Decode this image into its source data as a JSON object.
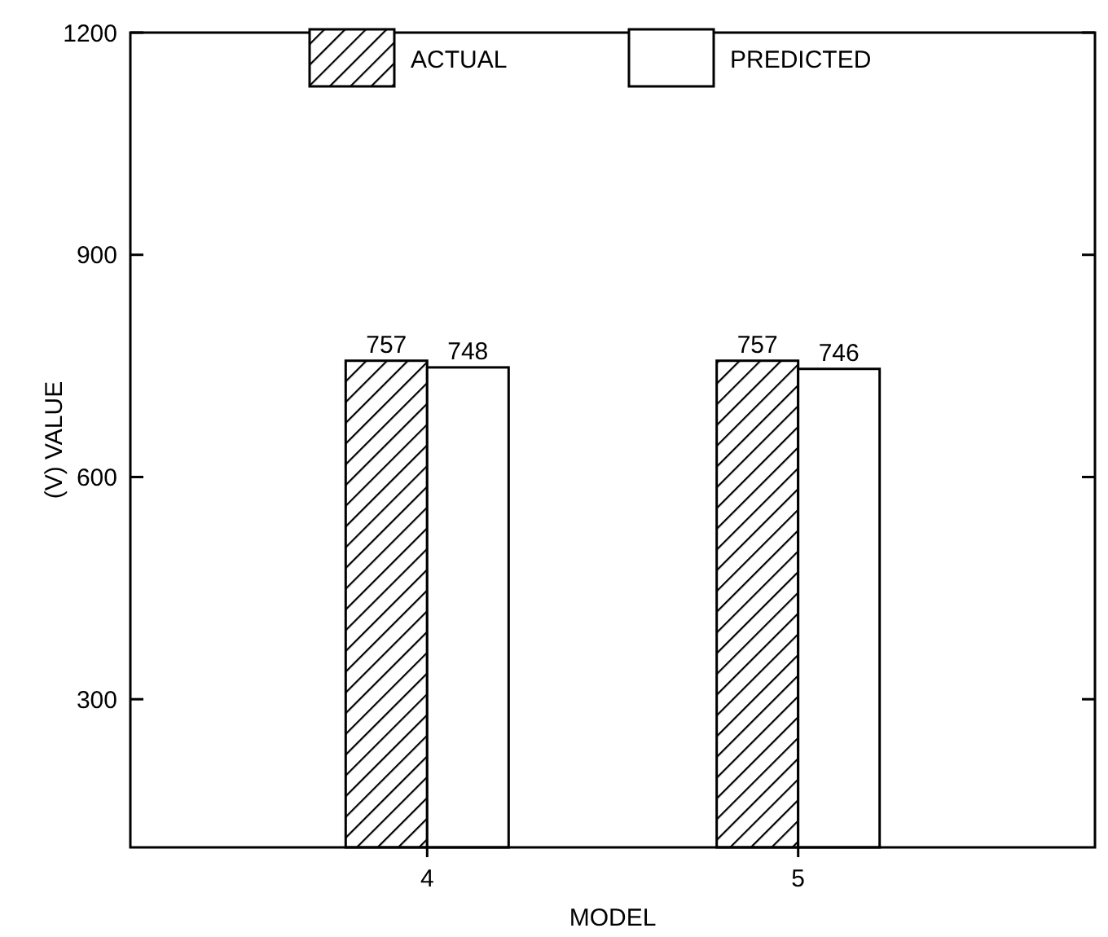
{
  "chart_data": {
    "type": "bar",
    "xlabel": "MODEL",
    "ylabel": "(V) VALUE",
    "categories": [
      "4",
      "5"
    ],
    "series": [
      {
        "name": "ACTUAL",
        "color": "#000000",
        "values": [
          757,
          757
        ]
      },
      {
        "name": "PREDICTED",
        "color": "#ffffff",
        "values": [
          748,
          746
        ]
      }
    ],
    "ylim": [
      100,
      1200
    ],
    "yticks": [
      300,
      600,
      900,
      1200
    ],
    "grid": false,
    "legend": "top",
    "data_labels": true
  }
}
